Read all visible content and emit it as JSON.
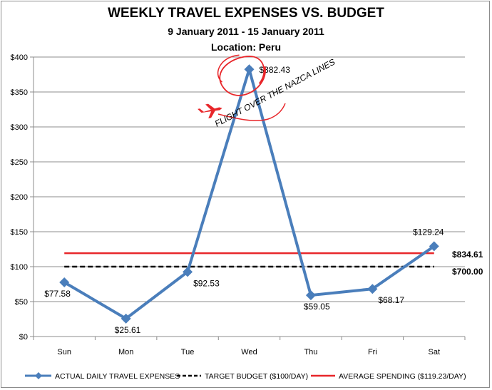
{
  "chart_data": {
    "type": "line",
    "title": "WEEKLY TRAVEL EXPENSES VS. BUDGET",
    "subtitle": "9 January 2011 - 15 January 2011",
    "location": "Location: Peru",
    "categories": [
      "Sun",
      "Mon",
      "Tue",
      "Wed",
      "Thu",
      "Fri",
      "Sat"
    ],
    "ylim": [
      0,
      400
    ],
    "yticks": [
      0,
      50,
      100,
      150,
      200,
      250,
      300,
      350,
      400
    ],
    "ytick_labels": [
      "$0",
      "$50",
      "$100",
      "$150",
      "$200",
      "$250",
      "$300",
      "$350",
      "$400"
    ],
    "grid": true,
    "legend_position": "bottom",
    "series": [
      {
        "name": "ACTUAL DAILY TRAVEL EXPENSES",
        "values": [
          77.58,
          25.61,
          92.53,
          382.43,
          59.05,
          68.17,
          129.24
        ],
        "labels": [
          "$77.58",
          "$25.61",
          "$92.53",
          "$382.43",
          "$59.05",
          "$68.17",
          "$129.24"
        ],
        "color": "#4a7ebb",
        "style": "line-diamond"
      },
      {
        "name": "TARGET BUDGET ($100/DAY)",
        "value": 100,
        "end_label": "$700.00",
        "color": "#000000",
        "style": "dashed"
      },
      {
        "name": "AVERAGE SPENDING ($119.23/DAY)",
        "value": 119.23,
        "end_label": "$834.61",
        "color": "#e8262a",
        "style": "solid"
      }
    ],
    "annotation": {
      "text": "FLIGHT OVER THE NAZCA LINES",
      "color": "#e8262a",
      "icon": "airplane-icon"
    }
  }
}
